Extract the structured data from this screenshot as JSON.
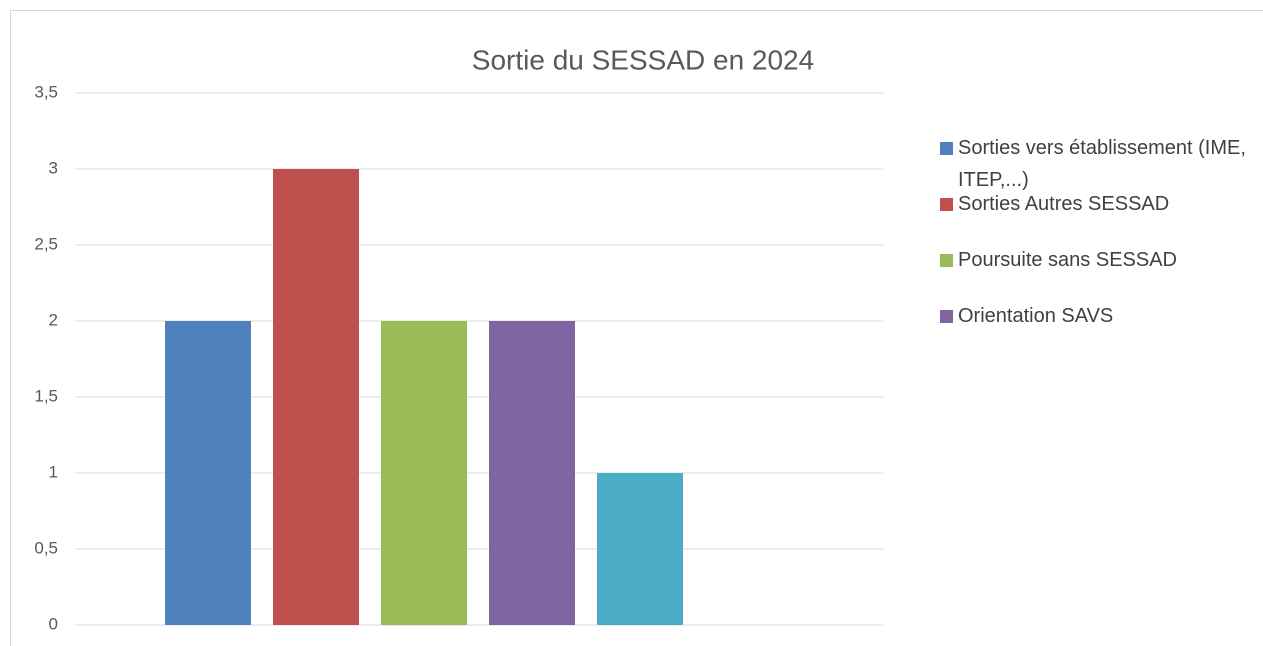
{
  "chart_data": {
    "type": "bar",
    "title": "Sortie du SESSAD en 2024",
    "series": [
      {
        "name": "Sorties  vers établissement (IME, ITEP,...)",
        "color": "#4f81bd",
        "values": [
          2
        ]
      },
      {
        "name": "Sorties Autres SESSAD",
        "color": "#c0504d",
        "values": [
          3
        ]
      },
      {
        "name": "Poursuite sans SESSAD",
        "color": "#9bbb59",
        "values": [
          2
        ]
      },
      {
        "name": "Orientation SAVS",
        "color": "#8064a2",
        "values": [
          2
        ]
      },
      {
        "name": null,
        "color": "#4bacc6",
        "values": [
          1
        ]
      }
    ],
    "ylim": [
      0,
      3.5
    ],
    "yticks": [
      0,
      {
        "value": 0.5,
        "label": "0,5"
      },
      1,
      {
        "value": 1.5,
        "label": "1,5"
      },
      2,
      {
        "value": 2.5,
        "label": "2,5"
      },
      3,
      {
        "value": 3.5,
        "label": "3,5"
      }
    ],
    "grid": true,
    "legend": "right"
  }
}
